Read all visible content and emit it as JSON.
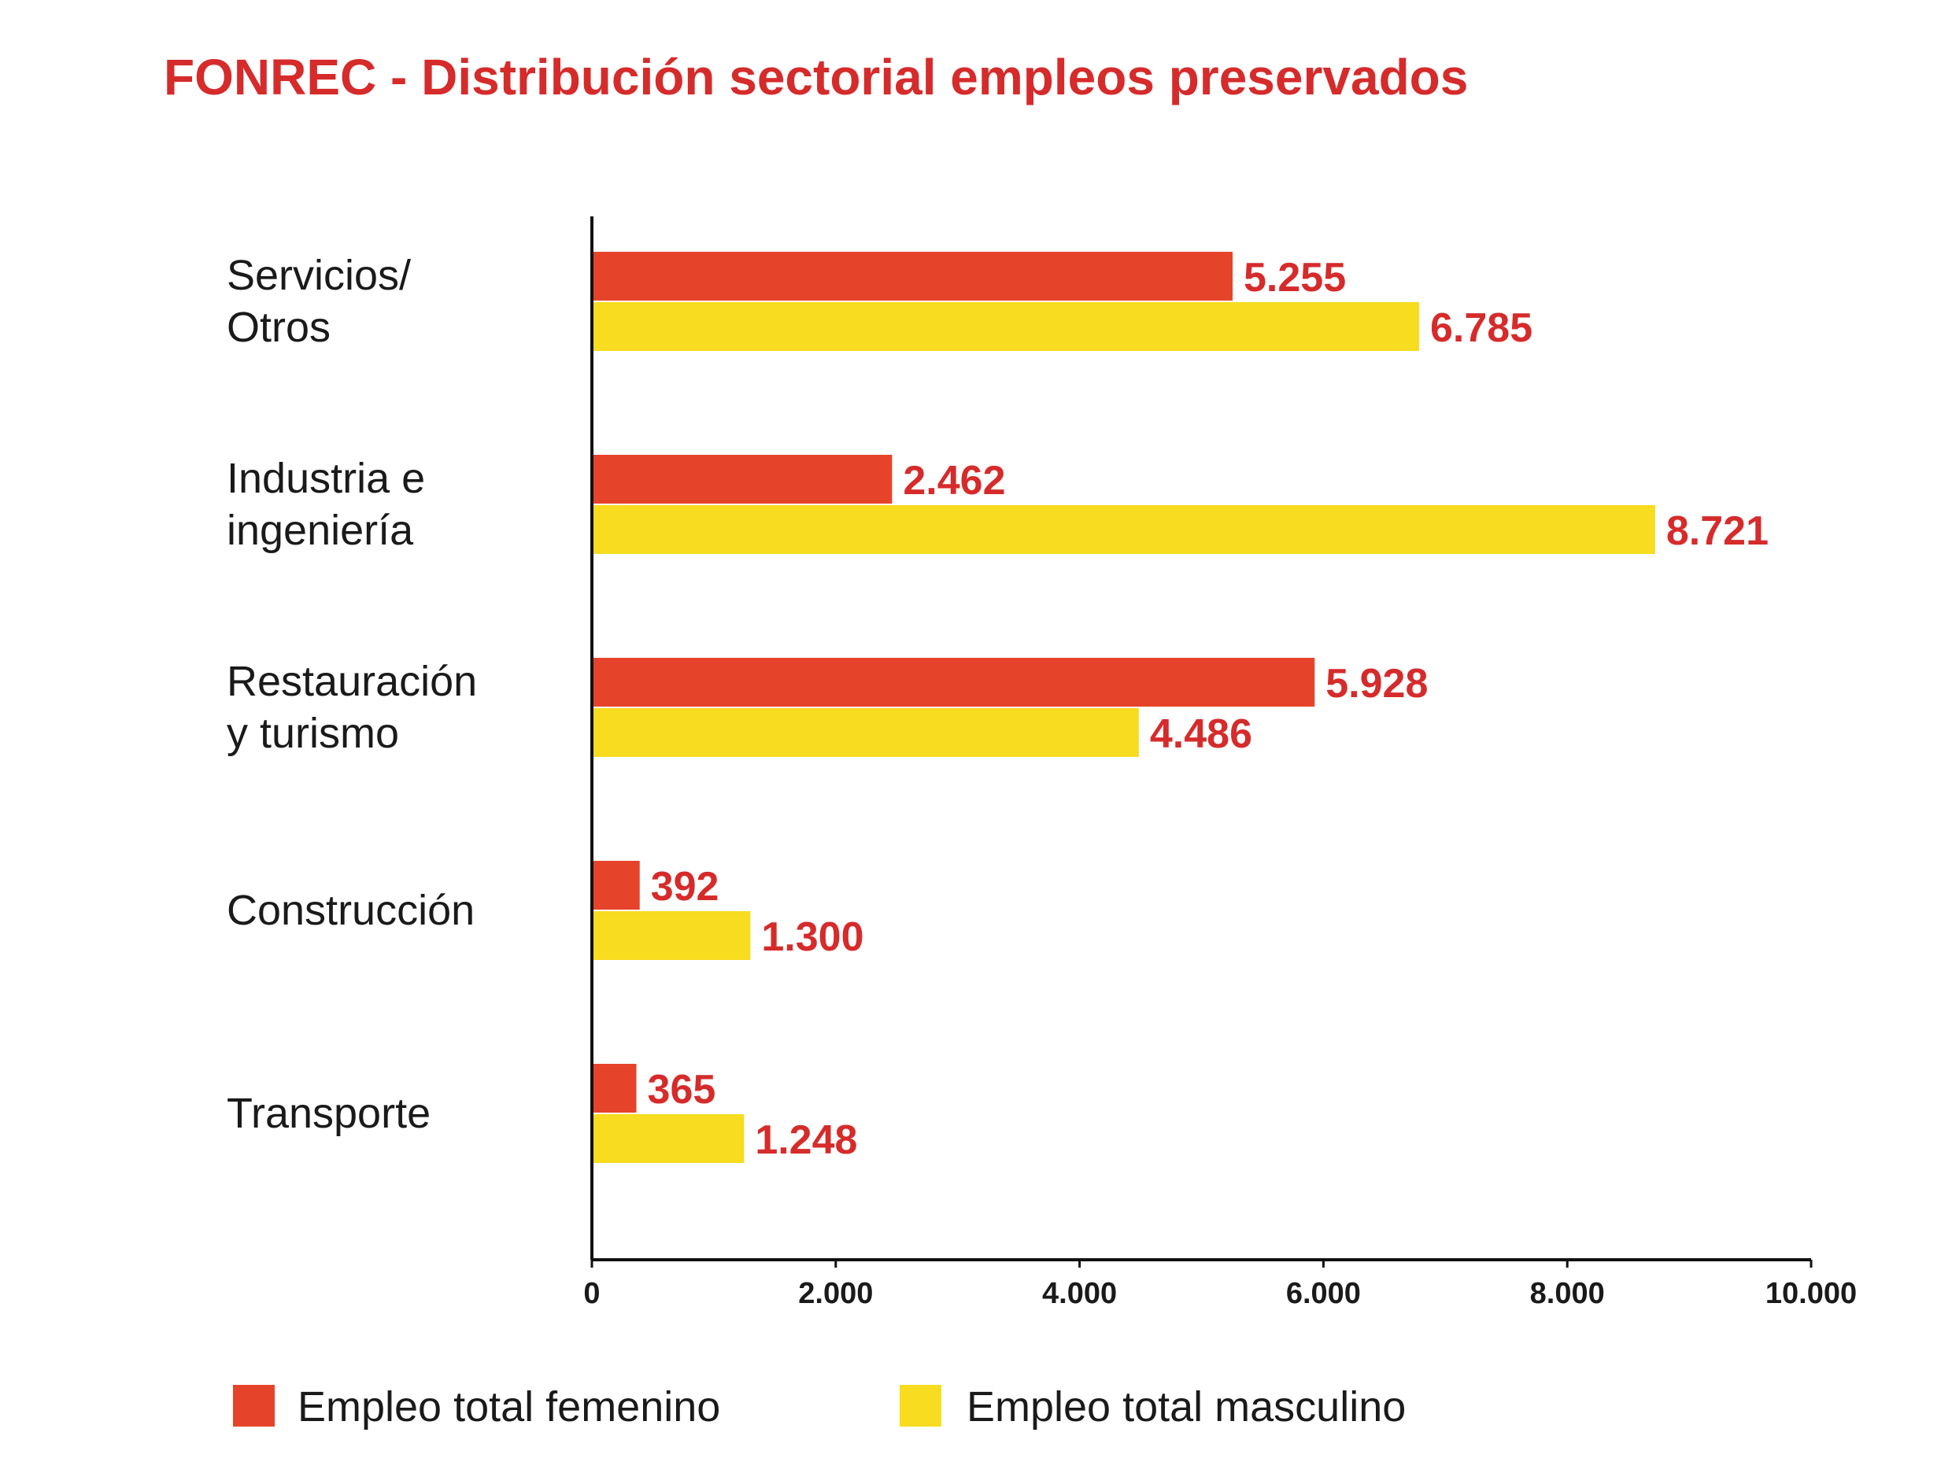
{
  "chart_data": {
    "type": "bar",
    "orientation": "horizontal",
    "title": "FONREC - Distribución sectorial empleos preservados",
    "categories": [
      [
        "Servicios/",
        "Otros"
      ],
      [
        "Industria e",
        "ingeniería"
      ],
      [
        "Restauración",
        "y turismo"
      ],
      [
        "Construcción"
      ],
      [
        "Transporte"
      ]
    ],
    "series": [
      {
        "name": "Empleo total femenino",
        "values": [
          5255,
          2462,
          5928,
          392,
          365
        ],
        "labels": [
          "5.255",
          "2.462",
          "5.928",
          "392",
          "365"
        ],
        "color": "#E6432B"
      },
      {
        "name": "Empleo total masculino",
        "values": [
          6785,
          8721,
          4486,
          1300,
          1248
        ],
        "labels": [
          "6.785",
          "8.721",
          "4.486",
          "1.300",
          "1.248"
        ],
        "color": "#F7DC1F"
      }
    ],
    "xlim": [
      0,
      10000
    ],
    "ticks": [
      0,
      2000,
      4000,
      6000,
      8000,
      10000
    ],
    "tick_labels": [
      "0",
      "2.000",
      "4.000",
      "6.000",
      "8.000",
      "10.000"
    ],
    "grid": false,
    "legend_position": "bottom",
    "label_color": "#D62B2B",
    "title_color": "#D62B2B"
  }
}
